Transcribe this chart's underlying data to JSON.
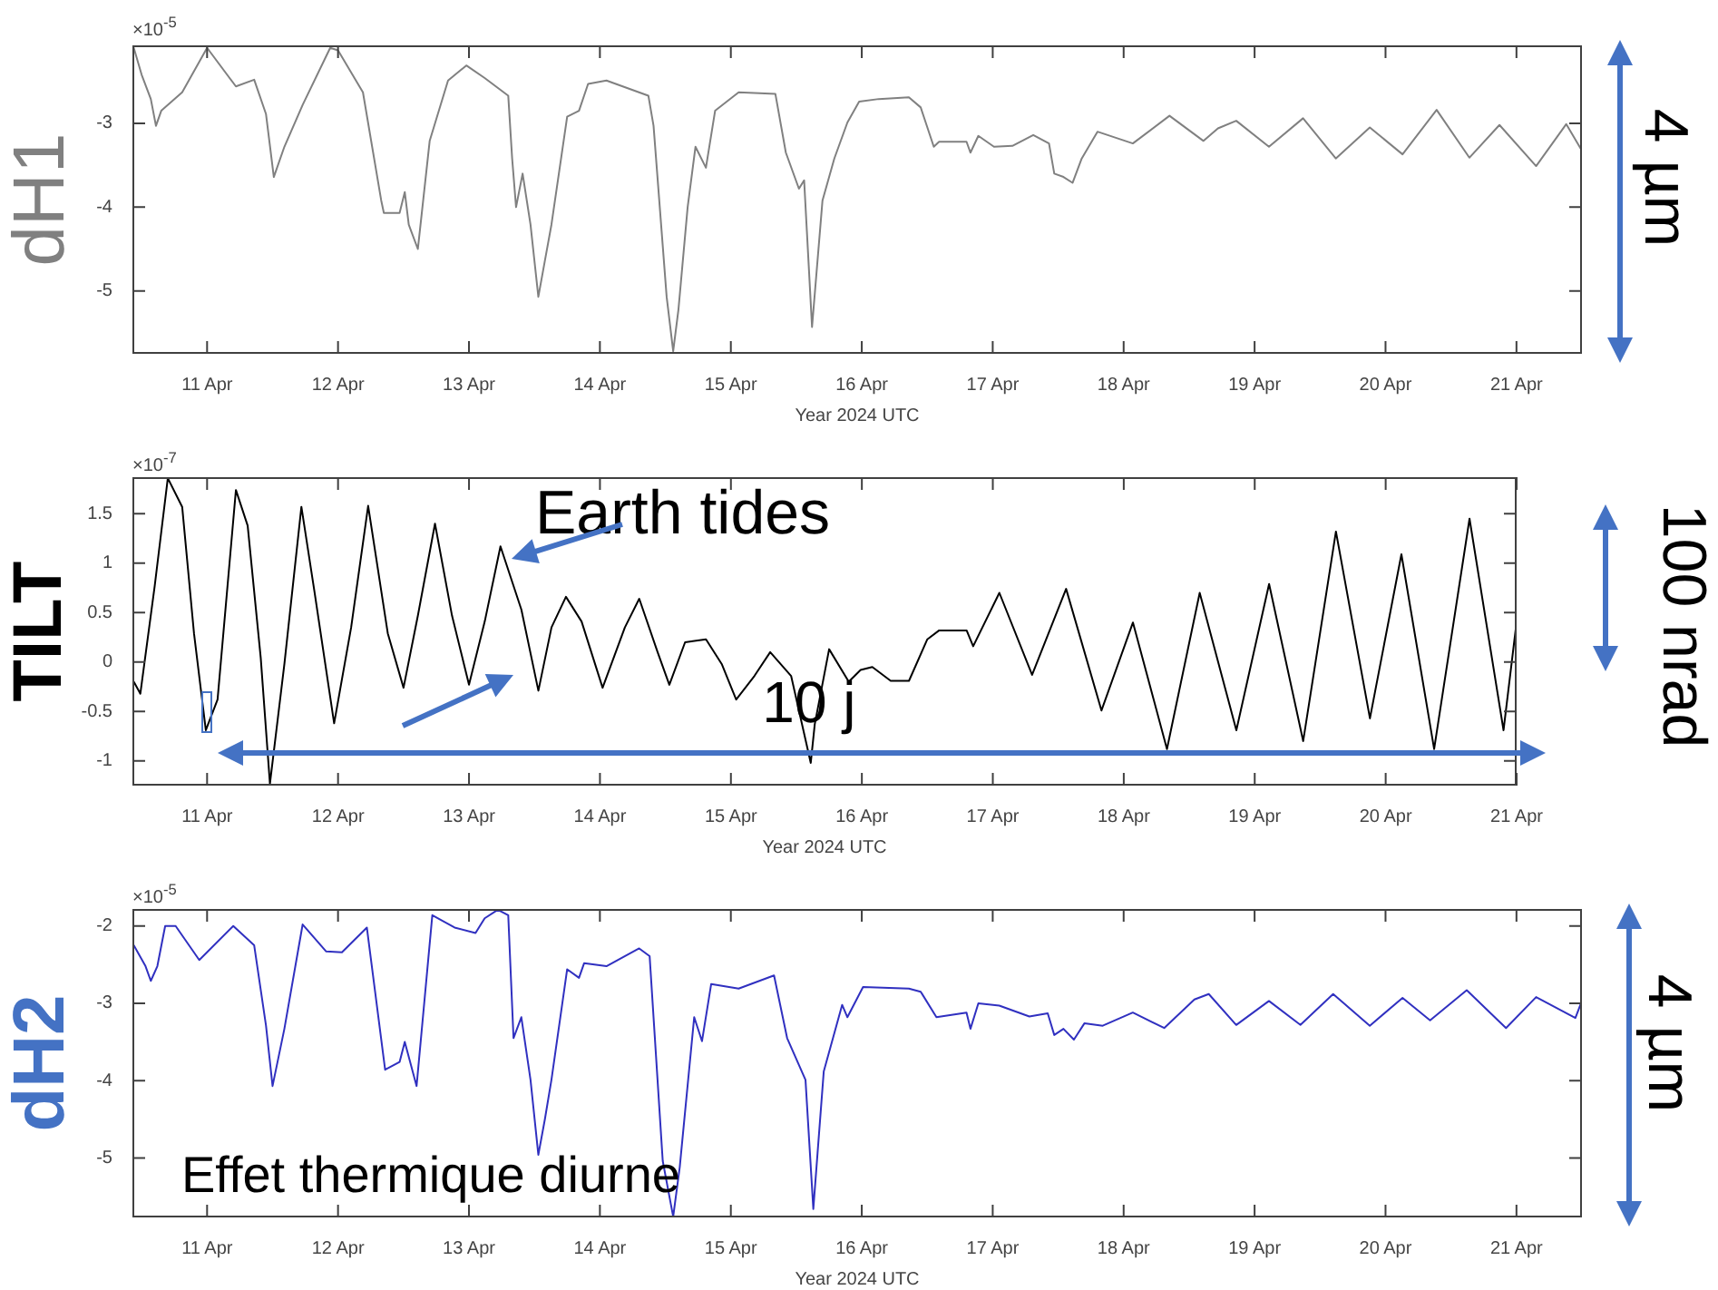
{
  "chart_data": [
    {
      "type": "line",
      "ylabel": "dH1",
      "xlabel": "Year 2024 UTC",
      "color": "#808080",
      "x": [
        "2024-04-10T10:34",
        "2024-04-10T12:00",
        "2024-04-10T13:41",
        "2024-04-10T14:38",
        "2024-04-10T15:36",
        "2024-04-10T19:26",
        "2024-04-11T00:00",
        "2024-04-11T05:17",
        "2024-04-11T08:38",
        "2024-04-11T10:48",
        "2024-04-11T12:14",
        "2024-04-11T14:10",
        "2024-04-11T17:31",
        "2024-04-11T22:34",
        "2024-04-12T00:00",
        "2024-04-12T04:34",
        "2024-04-12T07:55",
        "2024-04-12T08:24",
        "2024-04-12T11:17",
        "2024-04-12T12:14",
        "2024-04-12T12:58",
        "2024-04-12T14:38",
        "2024-04-12T16:48",
        "2024-04-12T20:10",
        "2024-04-12T23:31",
        "2024-04-13T02:53",
        "2024-04-13T07:12",
        "2024-04-13T07:55",
        "2024-04-13T08:38",
        "2024-04-13T09:50",
        "2024-04-13T11:17",
        "2024-04-13T12:43",
        "2024-04-13T13:55",
        "2024-04-13T15:07",
        "2024-04-13T18:00",
        "2024-04-13T20:10",
        "2024-04-13T21:50",
        "2024-04-14T01:12",
        "2024-04-14T08:53",
        "2024-04-14T09:50",
        "2024-04-14T12:14",
        "2024-04-14T13:26",
        "2024-04-14T14:24",
        "2024-04-14T16:05",
        "2024-04-14T17:31",
        "2024-04-14T19:26",
        "2024-04-14T21:07",
        "2024-04-15T01:26",
        "2024-04-15T08:10",
        "2024-04-15T10:05",
        "2024-04-15T12:29",
        "2024-04-15T13:26",
        "2024-04-15T14:53",
        "2024-04-15T16:48",
        "2024-04-15T18:58",
        "2024-04-15T21:22",
        "2024-04-15T23:31",
        "2024-04-16T03:07",
        "2024-04-16T08:38",
        "2024-04-16T10:48",
        "2024-04-16T13:12",
        "2024-04-16T14:10",
        "2024-04-16T19:12",
        "2024-04-16T19:55",
        "2024-04-16T21:22",
        "2024-04-17T00:14",
        "2024-04-17T03:36",
        "2024-04-17T07:26",
        "2024-04-17T10:19",
        "2024-04-17T11:17",
        "2024-04-17T12:58",
        "2024-04-17T14:38",
        "2024-04-17T16:19",
        "2024-04-17T19:12",
        "2024-04-18T01:41",
        "2024-04-18T08:24",
        "2024-04-18T14:38",
        "2024-04-18T17:17",
        "2024-04-18T20:38",
        "2024-04-19T02:38",
        "2024-04-19T08:53",
        "2024-04-19T14:53",
        "2024-04-19T21:07",
        "2024-04-20T03:07",
        "2024-04-20T09:22",
        "2024-04-20T15:22",
        "2024-04-20T20:53",
        "2024-04-21T03:36",
        "2024-04-21T09:07",
        "2024-04-21T11:46"
      ],
      "values": [
        -2.1,
        -2.42,
        -2.71,
        -3.03,
        -2.85,
        -2.63,
        -2.1,
        -2.56,
        -2.48,
        -2.89,
        -3.64,
        -3.28,
        -2.78,
        -2.1,
        -2.13,
        -2.63,
        -3.92,
        -4.07,
        -4.07,
        -3.82,
        -4.21,
        -4.5,
        -3.21,
        -2.49,
        -2.31,
        -2.46,
        -2.67,
        -3.42,
        -4.0,
        -3.6,
        -4.21,
        -5.07,
        -4.64,
        -4.21,
        -2.92,
        -2.85,
        -2.53,
        -2.49,
        -2.67,
        -3.03,
        -5.07,
        -5.72,
        -5.22,
        -4.0,
        -3.28,
        -3.53,
        -2.85,
        -2.63,
        -2.65,
        -3.35,
        -3.78,
        -3.68,
        -5.43,
        -3.92,
        -3.42,
        -2.99,
        -2.74,
        -2.71,
        -2.69,
        -2.81,
        -3.28,
        -3.22,
        -3.22,
        -3.35,
        -3.15,
        -3.28,
        -3.27,
        -3.14,
        -3.24,
        -3.6,
        -3.64,
        -3.71,
        -3.42,
        -3.1,
        -3.24,
        -2.91,
        -3.21,
        -3.06,
        -2.97,
        -3.28,
        -2.94,
        -3.42,
        -3.05,
        -3.37,
        -2.84,
        -3.41,
        -3.02,
        -3.51,
        -3.01,
        -3.3
      ],
      "xlim": [
        "2024-04-10T10:19",
        "2024-04-21T12:00"
      ],
      "xticks": [
        {
          "value": "2024-04-11",
          "label": "11 Apr"
        },
        {
          "value": "2024-04-12",
          "label": "12 Apr"
        },
        {
          "value": "2024-04-13",
          "label": "13 Apr"
        },
        {
          "value": "2024-04-14",
          "label": "14 Apr"
        },
        {
          "value": "2024-04-15",
          "label": "15 Apr"
        },
        {
          "value": "2024-04-16",
          "label": "16 Apr"
        },
        {
          "value": "2024-04-17",
          "label": "17 Apr"
        },
        {
          "value": "2024-04-18",
          "label": "18 Apr"
        },
        {
          "value": "2024-04-19",
          "label": "19 Apr"
        },
        {
          "value": "2024-04-20",
          "label": "20 Apr"
        },
        {
          "value": "2024-04-21",
          "label": "21 Apr"
        }
      ],
      "ylim": [
        -5.75,
        -2.07
      ],
      "yticks": [
        -3,
        -4,
        -5
      ],
      "annotations": [
        "×10$^{-5}$",
        "4 µm"
      ]
    },
    {
      "type": "line",
      "ylabel": "TILT",
      "xlabel": "Year 2024 UTC",
      "color": "#000000",
      "x": [
        "2024-04-10T10:34",
        "2024-04-10T11:46",
        "2024-04-10T14:24",
        "2024-04-10T16:48",
        "2024-04-10T19:26",
        "2024-04-10T21:36",
        "2024-04-10T23:46",
        "2024-04-11T01:55",
        "2024-04-11T05:17",
        "2024-04-11T07:26",
        "2024-04-11T09:50",
        "2024-04-11T11:31",
        "2024-04-11T14:10",
        "2024-04-11T17:17",
        "2024-04-11T19:41",
        "2024-04-11T23:17",
        "2024-04-12T02:24",
        "2024-04-12T05:31",
        "2024-04-12T09:07",
        "2024-04-12T12:00",
        "2024-04-12T14:38",
        "2024-04-12T17:46",
        "2024-04-12T20:53",
        "2024-04-13T00:00",
        "2024-04-13T02:53",
        "2024-04-13T05:46",
        "2024-04-13T09:36",
        "2024-04-13T12:43",
        "2024-04-13T15:07",
        "2024-04-13T17:46",
        "2024-04-13T20:38",
        "2024-04-14T00:29",
        "2024-04-14T04:34",
        "2024-04-14T07:12",
        "2024-04-14T10:34",
        "2024-04-14T12:43",
        "2024-04-14T15:36",
        "2024-04-14T19:26",
        "2024-04-14T22:19",
        "2024-04-15T00:58",
        "2024-04-15T04:19",
        "2024-04-15T07:12",
        "2024-04-15T11:02",
        "2024-04-15T14:38",
        "2024-04-15T15:22",
        "2024-04-15T18:00",
        "2024-04-15T21:36",
        "2024-04-15T23:46",
        "2024-04-16T01:55",
        "2024-04-16T05:17",
        "2024-04-16T08:38",
        "2024-04-16T12:00",
        "2024-04-16T14:10",
        "2024-04-16T19:12",
        "2024-04-16T20:24",
        "2024-04-17T01:12",
        "2024-04-17T07:12",
        "2024-04-17T13:26",
        "2024-04-17T19:55",
        "2024-04-18T01:41",
        "2024-04-18T07:55",
        "2024-04-18T13:55",
        "2024-04-18T20:38",
        "2024-04-19T02:38",
        "2024-04-19T08:53",
        "2024-04-19T14:53",
        "2024-04-19T21:07",
        "2024-04-20T02:53",
        "2024-04-20T08:53",
        "2024-04-20T15:22",
        "2024-04-20T21:36",
        "2024-04-21T00:00"
      ],
      "values": [
        -0.2,
        -0.32,
        0.77,
        1.86,
        1.57,
        0.29,
        -0.69,
        -0.38,
        1.74,
        1.38,
        0.04,
        -1.23,
        -0.02,
        1.57,
        0.71,
        -0.62,
        0.35,
        1.58,
        0.29,
        -0.26,
        0.47,
        1.4,
        0.47,
        -0.23,
        0.41,
        1.17,
        0.53,
        -0.29,
        0.35,
        0.66,
        0.41,
        -0.26,
        0.35,
        0.64,
        0.1,
        -0.23,
        0.2,
        0.23,
        -0.02,
        -0.38,
        -0.14,
        0.1,
        -0.14,
        -1.02,
        -0.63,
        0.13,
        -0.2,
        -0.08,
        -0.05,
        -0.19,
        -0.19,
        0.23,
        0.32,
        0.32,
        0.16,
        0.7,
        -0.13,
        0.74,
        -0.49,
        0.4,
        -0.88,
        0.7,
        -0.69,
        0.79,
        -0.8,
        1.32,
        -0.57,
        1.09,
        -0.88,
        1.45,
        -0.69,
        0.41
      ],
      "xlim": [
        "2024-04-10T10:19",
        "2024-04-21T00:00"
      ],
      "xticks": [
        {
          "value": "2024-04-11",
          "label": "11 Apr"
        },
        {
          "value": "2024-04-12",
          "label": "12 Apr"
        },
        {
          "value": "2024-04-13",
          "label": "13 Apr"
        },
        {
          "value": "2024-04-14",
          "label": "14 Apr"
        },
        {
          "value": "2024-04-15",
          "label": "15 Apr"
        },
        {
          "value": "2024-04-16",
          "label": "16 Apr"
        },
        {
          "value": "2024-04-17",
          "label": "17 Apr"
        },
        {
          "value": "2024-04-18",
          "label": "18 Apr"
        },
        {
          "value": "2024-04-19",
          "label": "19 Apr"
        },
        {
          "value": "2024-04-20",
          "label": "20 Apr"
        },
        {
          "value": "2024-04-21",
          "label": "21 Apr"
        }
      ],
      "ylim": [
        -1.25,
        1.87
      ],
      "yticks": [
        1.5,
        1,
        0.5,
        0,
        -0.5,
        -1
      ],
      "ref_lines": [
        {
          "axis": "y",
          "value": -0.92,
          "label": "10 j",
          "color": "#4472c4"
        }
      ],
      "annotations": [
        "×10$^{-7}$",
        "Earth tides",
        "100 nrad"
      ]
    },
    {
      "type": "line",
      "ylabel": "dH2",
      "xlabel": "Year 2024 UTC",
      "color": "#3030c0",
      "x": [
        "2024-04-10T10:34",
        "2024-04-10T12:43",
        "2024-04-10T13:41",
        "2024-04-10T14:53",
        "2024-04-10T16:19",
        "2024-04-10T18:14",
        "2024-04-10T22:34",
        "2024-04-11T04:48",
        "2024-04-11T08:38",
        "2024-04-11T10:48",
        "2024-04-11T12:00",
        "2024-04-11T14:10",
        "2024-04-11T17:31",
        "2024-04-11T21:50",
        "2024-04-12T00:43",
        "2024-04-12T05:17",
        "2024-04-12T08:38",
        "2024-04-12T11:17",
        "2024-04-12T12:14",
        "2024-04-12T14:24",
        "2024-04-12T17:17",
        "2024-04-12T21:22",
        "2024-04-13T01:12",
        "2024-04-13T02:53",
        "2024-04-13T05:17",
        "2024-04-13T07:12",
        "2024-04-13T08:10",
        "2024-04-13T09:36",
        "2024-04-13T11:17",
        "2024-04-13T12:43",
        "2024-04-13T13:55",
        "2024-04-13T15:07",
        "2024-04-13T18:00",
        "2024-04-13T20:10",
        "2024-04-13T21:07",
        "2024-04-14T01:12",
        "2024-04-14T07:12",
        "2024-04-14T09:07",
        "2024-04-14T11:31",
        "2024-04-14T13:26",
        "2024-04-14T14:38",
        "2024-04-14T17:17",
        "2024-04-14T18:43",
        "2024-04-14T20:24",
        "2024-04-15T01:26",
        "2024-04-15T07:55",
        "2024-04-15T10:19",
        "2024-04-15T13:41",
        "2024-04-15T15:07",
        "2024-04-15T17:02",
        "2024-04-15T20:24",
        "2024-04-15T21:22",
        "2024-04-16T00:14",
        "2024-04-16T08:38",
        "2024-04-16T10:48",
        "2024-04-16T13:41",
        "2024-04-16T19:12",
        "2024-04-16T19:55",
        "2024-04-16T21:22",
        "2024-04-17T01:12",
        "2024-04-17T06:43",
        "2024-04-17T10:05",
        "2024-04-17T11:17",
        "2024-04-17T12:58",
        "2024-04-17T14:53",
        "2024-04-17T16:48",
        "2024-04-17T20:10",
        "2024-04-18T01:41",
        "2024-04-18T07:26",
        "2024-04-18T12:58",
        "2024-04-18T15:36",
        "2024-04-18T20:38",
        "2024-04-19T02:38",
        "2024-04-19T08:24",
        "2024-04-19T14:24",
        "2024-04-19T21:07",
        "2024-04-20T03:07",
        "2024-04-20T08:10",
        "2024-04-20T14:53",
        "2024-04-20T22:05",
        "2024-04-21T03:36",
        "2024-04-21T10:48",
        "2024-04-21T11:46"
      ],
      "values": [
        -2.25,
        -2.52,
        -2.71,
        -2.52,
        -2.0,
        -2.0,
        -2.44,
        -2.0,
        -2.25,
        -3.29,
        -4.07,
        -3.33,
        -1.98,
        -2.33,
        -2.34,
        -2.02,
        -3.86,
        -3.76,
        -3.5,
        -4.07,
        -1.86,
        -2.02,
        -2.09,
        -1.9,
        -1.79,
        -1.86,
        -3.45,
        -3.18,
        -3.99,
        -4.96,
        -4.5,
        -3.99,
        -2.56,
        -2.67,
        -2.48,
        -2.52,
        -2.29,
        -2.39,
        -5.04,
        -5.76,
        -5.12,
        -3.18,
        -3.49,
        -2.75,
        -2.81,
        -2.64,
        -3.45,
        -3.99,
        -5.66,
        -3.88,
        -3.02,
        -3.18,
        -2.79,
        -2.81,
        -2.85,
        -3.18,
        -3.12,
        -3.33,
        -3.0,
        -3.03,
        -3.17,
        -3.13,
        -3.41,
        -3.33,
        -3.47,
        -3.26,
        -3.29,
        -3.12,
        -3.32,
        -2.95,
        -2.88,
        -3.28,
        -2.97,
        -3.28,
        -2.88,
        -3.29,
        -2.93,
        -3.22,
        -2.83,
        -3.32,
        -2.92,
        -3.19,
        -3.01
      ],
      "xlim": [
        "2024-04-10T10:19",
        "2024-04-21T12:00"
      ],
      "xticks": [
        {
          "value": "2024-04-11",
          "label": "11 Apr"
        },
        {
          "value": "2024-04-12",
          "label": "12 Apr"
        },
        {
          "value": "2024-04-13",
          "label": "13 Apr"
        },
        {
          "value": "2024-04-14",
          "label": "14 Apr"
        },
        {
          "value": "2024-04-15",
          "label": "15 Apr"
        },
        {
          "value": "2024-04-16",
          "label": "16 Apr"
        },
        {
          "value": "2024-04-17",
          "label": "17 Apr"
        },
        {
          "value": "2024-04-18",
          "label": "18 Apr"
        },
        {
          "value": "2024-04-19",
          "label": "19 Apr"
        },
        {
          "value": "2024-04-20",
          "label": "20 Apr"
        },
        {
          "value": "2024-04-21",
          "label": "21 Apr"
        }
      ],
      "ylim": [
        -5.77,
        -1.78
      ],
      "yticks": [
        -2,
        -3,
        -4,
        -5
      ],
      "annotations": [
        "×10$^{-5}$",
        "Effet thermique diurne",
        "4 µm"
      ]
    }
  ]
}
